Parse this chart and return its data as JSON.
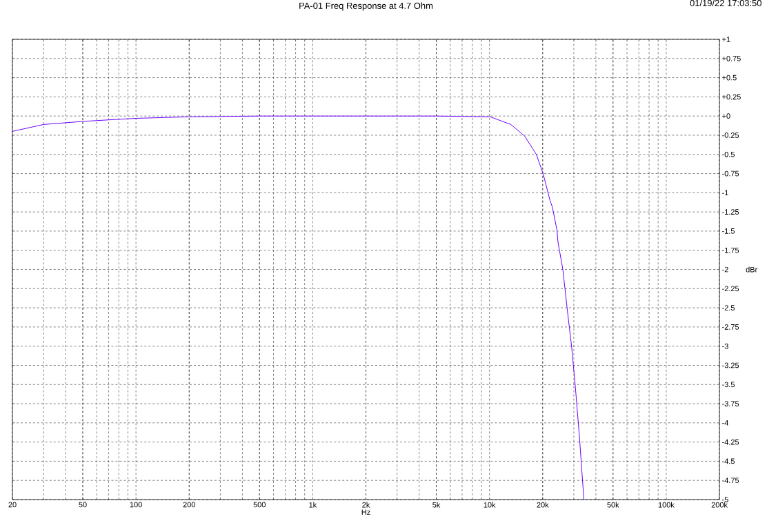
{
  "chart_data": {
    "type": "line",
    "title": "PA-01 Freq Response at 4.7 Ohm",
    "xlabel": "Hz",
    "ylabel": "dBr",
    "annotations": [
      "01/19/22 17:03:50"
    ],
    "log": "x",
    "grid": true,
    "marker": "none",
    "line_style": "solid",
    "xlim": [
      20,
      200000
    ],
    "ylim": [
      -5,
      1
    ],
    "xticks": [
      20,
      50,
      100,
      200,
      500,
      {
        "value": 1000,
        "label": "1k"
      },
      {
        "value": 2000,
        "label": "2k"
      },
      {
        "value": 5000,
        "label": "5k"
      },
      {
        "value": 10000,
        "label": "10k"
      },
      {
        "value": 20000,
        "label": "20k"
      },
      {
        "value": 50000,
        "label": "50k"
      },
      {
        "value": 100000,
        "label": "100k"
      },
      {
        "value": 200000,
        "label": "200k"
      }
    ],
    "yticks": [
      {
        "value": 1,
        "label": "+1"
      },
      {
        "value": 0.75,
        "label": "+0.75"
      },
      {
        "value": 0.5,
        "label": "+0.5"
      },
      {
        "value": 0.25,
        "label": "+0.25"
      },
      {
        "value": 0,
        "label": "+0"
      },
      -0.25,
      -0.5,
      -0.75,
      -1,
      -1.25,
      -1.5,
      -1.75,
      -2,
      -2.25,
      -2.5,
      -2.75,
      -3,
      -3.25,
      -3.5,
      -3.75,
      -4,
      -4.25,
      -4.5,
      -4.75,
      -5
    ],
    "series": [
      {
        "color": "#6a00ff",
        "x": [
          20,
          30,
          50,
          70,
          100,
          200,
          500,
          1000,
          2000,
          5000,
          10100,
          13200,
          15800,
          18400,
          20100,
          22000,
          22700,
          24100,
          24400,
          26000,
          27600,
          29200,
          30600,
          32300,
          34200
        ],
        "values": [
          -0.2,
          -0.11,
          -0.07,
          -0.05,
          -0.03,
          -0.01,
          0,
          0,
          0,
          0,
          -0.01,
          -0.11,
          -0.26,
          -0.5,
          -0.75,
          -1.1,
          -1.19,
          -1.49,
          -1.64,
          -2.0,
          -2.54,
          -3.02,
          -3.53,
          -4.19,
          -5.0
        ]
      }
    ]
  }
}
